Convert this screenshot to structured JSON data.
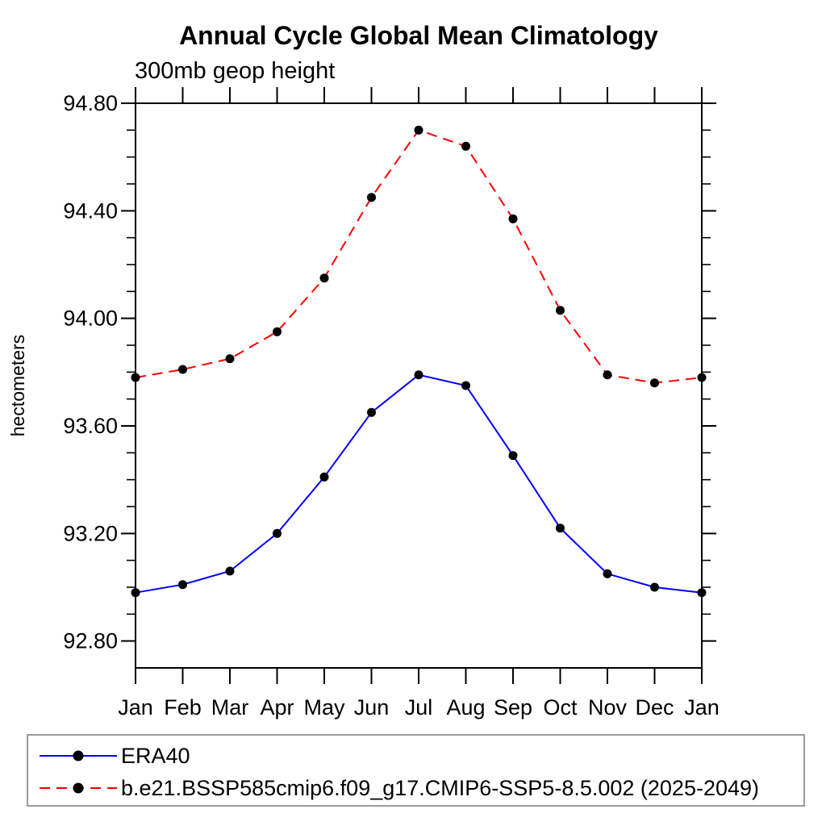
{
  "page": {
    "background": "#ffffff",
    "text_color": "#000000"
  },
  "chart_data": {
    "type": "line",
    "title": "Annual Cycle Global Mean Climatology",
    "subtitle": "300mb geop height",
    "ylabel": "hectometers",
    "xlabel": "",
    "categories": [
      "Jan",
      "Feb",
      "Mar",
      "Apr",
      "May",
      "Jun",
      "Jul",
      "Aug",
      "Sep",
      "Oct",
      "Nov",
      "Dec",
      "Jan"
    ],
    "ylim": [
      92.7,
      94.8
    ],
    "yticks_major": [
      92.8,
      93.2,
      93.6,
      94.0,
      94.4,
      94.8
    ],
    "ytick_minor_step": 0.1,
    "grid": false,
    "legend_position": "bottom",
    "frame_color": "#000000",
    "series": [
      {
        "name": "ERA40",
        "color": "#0000ff",
        "line_style": "solid",
        "marker": "circle",
        "marker_color": "#000000",
        "values": [
          92.98,
          93.01,
          93.06,
          93.2,
          93.41,
          93.65,
          93.79,
          93.75,
          93.49,
          93.22,
          93.05,
          93.0,
          92.98
        ]
      },
      {
        "name": "b.e21.BSSP585cmip6.f09_g17.CMIP6-SSP5-8.5.002 (2025-2049)",
        "color": "#ff0000",
        "line_style": "dashed",
        "marker": "circle",
        "marker_color": "#000000",
        "values": [
          93.78,
          93.81,
          93.85,
          93.95,
          94.15,
          94.45,
          94.7,
          94.64,
          94.37,
          94.03,
          93.79,
          93.76,
          93.78
        ]
      }
    ]
  }
}
